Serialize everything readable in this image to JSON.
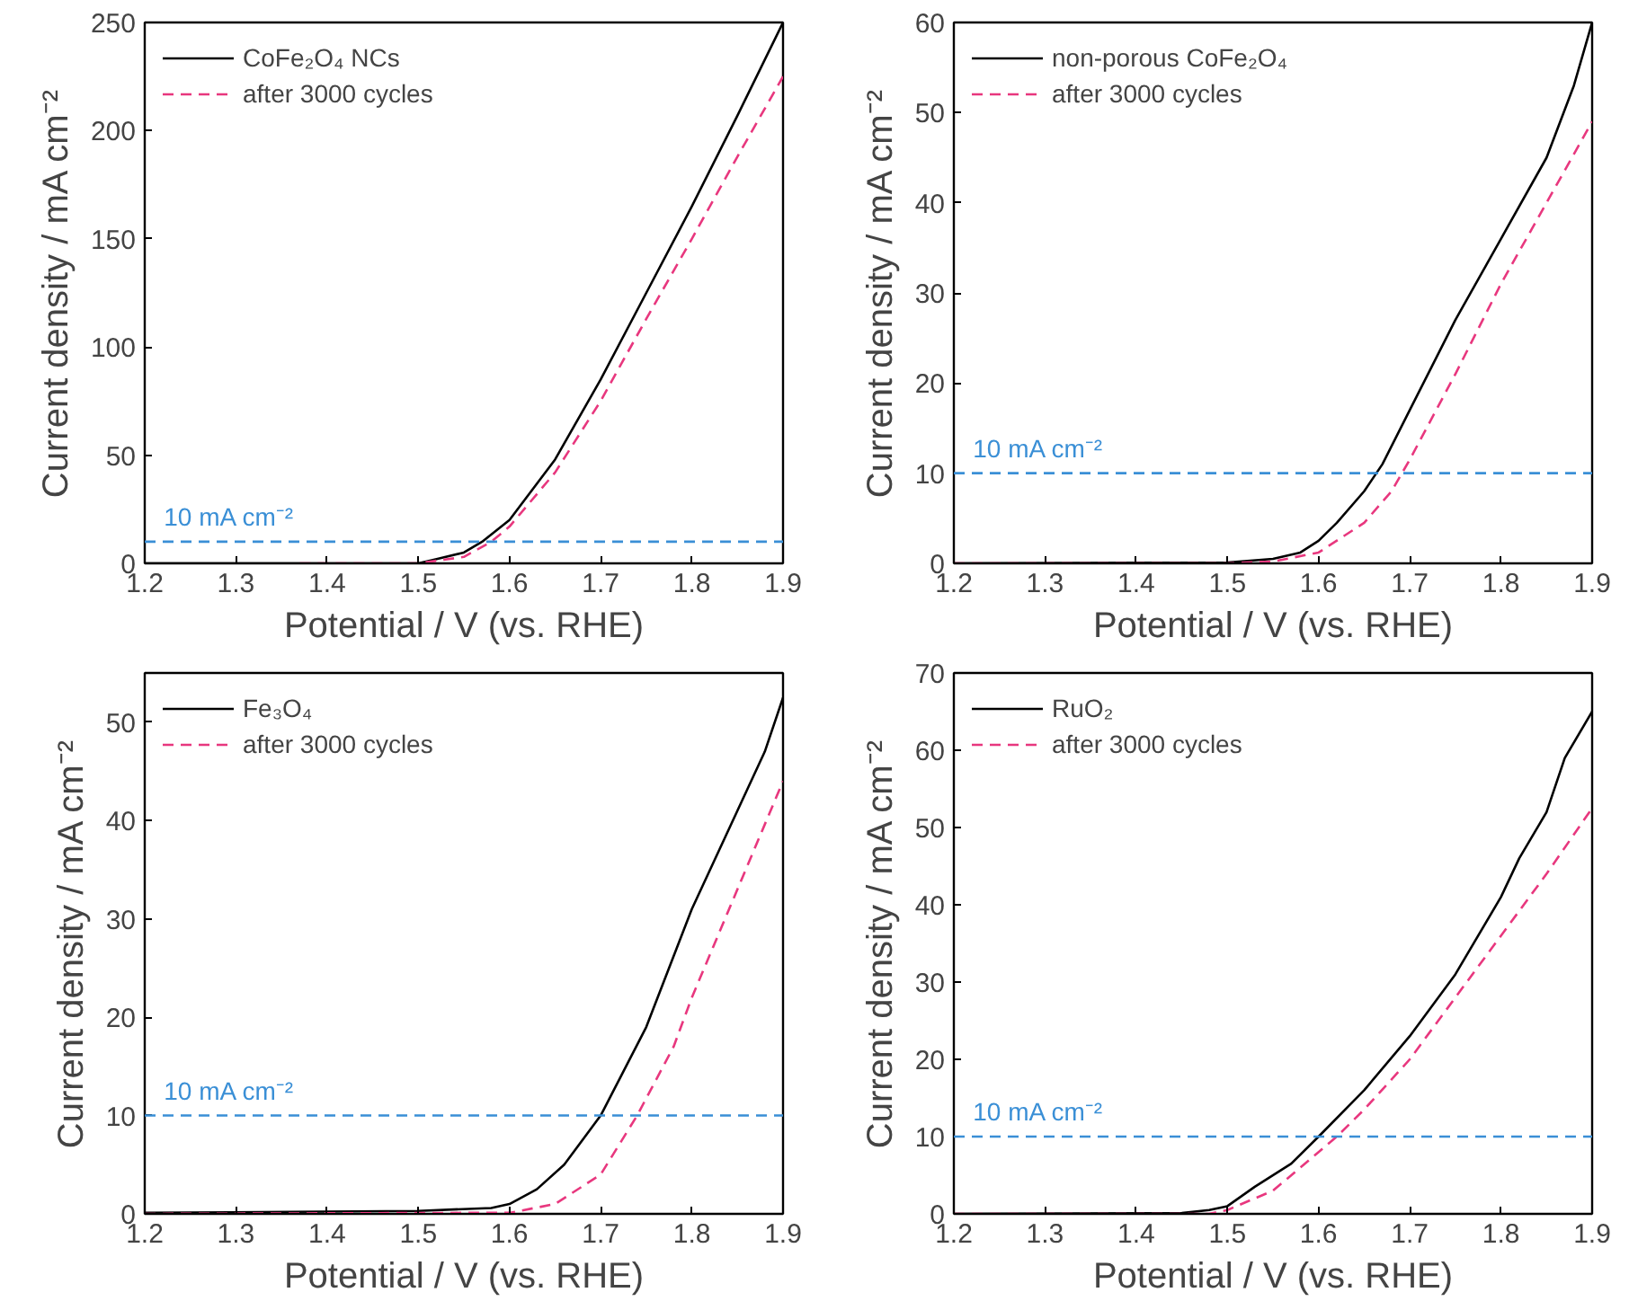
{
  "chart_data": [
    {
      "type": "line",
      "xlabel": "Potential / V (vs. RHE)",
      "ylabel": "Current density / mA cm⁻²",
      "xlim": [
        1.2,
        1.9
      ],
      "ylim": [
        0,
        250
      ],
      "xticks": [
        1.2,
        1.3,
        1.4,
        1.5,
        1.6,
        1.7,
        1.8,
        1.9
      ],
      "yticks": [
        0,
        50,
        100,
        150,
        200,
        250
      ],
      "legend": "top left",
      "grid": false,
      "ref_lines": [
        {
          "axis": "y",
          "value": 10,
          "label": "10 mA cm⁻²",
          "color": "#3a8fd6",
          "line_style": "dashed"
        }
      ],
      "series": [
        {
          "name": "CoFe₂O₄ NCs",
          "color": "#000000",
          "line_style": "solid",
          "x": [
            1.2,
            1.4,
            1.5,
            1.52,
            1.55,
            1.57,
            1.6,
            1.65,
            1.7,
            1.75,
            1.8,
            1.85,
            1.9
          ],
          "values": [
            0,
            0,
            0,
            2,
            5,
            10,
            20,
            48,
            85,
            125,
            165,
            207,
            250
          ]
        },
        {
          "name": "after 3000 cycles",
          "color": "#e8377e",
          "line_style": "dashed",
          "x": [
            1.37,
            1.5,
            1.55,
            1.58,
            1.6,
            1.65,
            1.7,
            1.75,
            1.8,
            1.85,
            1.9
          ],
          "values": [
            0,
            0,
            3,
            10,
            17,
            42,
            75,
            113,
            150,
            188,
            225
          ]
        }
      ]
    },
    {
      "type": "line",
      "xlabel": "Potential / V (vs. RHE)",
      "ylabel": "Current density / mA cm⁻²",
      "xlim": [
        1.2,
        1.9
      ],
      "ylim": [
        0,
        60
      ],
      "xticks": [
        1.2,
        1.3,
        1.4,
        1.5,
        1.6,
        1.7,
        1.8,
        1.9
      ],
      "yticks": [
        0,
        10,
        20,
        30,
        40,
        50,
        60
      ],
      "legend": "top left",
      "grid": false,
      "ref_lines": [
        {
          "axis": "y",
          "value": 10,
          "label": "10 mA cm⁻²",
          "color": "#3a8fd6",
          "line_style": "dashed"
        }
      ],
      "series": [
        {
          "name": "non-porous CoFe₂O₄",
          "color": "#000000",
          "line_style": "solid",
          "x": [
            1.2,
            1.5,
            1.55,
            1.58,
            1.6,
            1.62,
            1.65,
            1.67,
            1.7,
            1.75,
            1.8,
            1.85,
            1.88,
            1.9
          ],
          "values": [
            0,
            0.1,
            0.5,
            1.2,
            2.5,
            4.5,
            8,
            11,
            17,
            27,
            36,
            45,
            53,
            60
          ]
        },
        {
          "name": "after 3000 cycles",
          "color": "#e8377e",
          "line_style": "dashed",
          "x": [
            1.2,
            1.5,
            1.55,
            1.6,
            1.65,
            1.68,
            1.7,
            1.75,
            1.8,
            1.85,
            1.9
          ],
          "values": [
            0,
            0,
            0.2,
            1.2,
            4.5,
            8,
            11.5,
            21,
            31,
            40,
            49
          ]
        }
      ]
    },
    {
      "type": "line",
      "xlabel": "Potential / V (vs. RHE)",
      "ylabel": "Current density / mA cm⁻²",
      "xlim": [
        1.2,
        1.9
      ],
      "ylim": [
        0,
        55
      ],
      "xticks": [
        1.2,
        1.3,
        1.4,
        1.5,
        1.6,
        1.7,
        1.8,
        1.9
      ],
      "yticks": [
        0,
        10,
        20,
        30,
        40,
        50
      ],
      "legend": "top left",
      "grid": false,
      "ref_lines": [
        {
          "axis": "y",
          "value": 10,
          "label": "10 mA cm⁻²",
          "color": "#3a8fd6",
          "line_style": "dashed"
        }
      ],
      "series": [
        {
          "name": "Fe₃O₄",
          "color": "#000000",
          "line_style": "solid",
          "x": [
            1.2,
            1.5,
            1.58,
            1.6,
            1.63,
            1.66,
            1.7,
            1.75,
            1.8,
            1.85,
            1.88,
            1.9
          ],
          "values": [
            0.1,
            0.3,
            0.6,
            1,
            2.5,
            5,
            10,
            19,
            31,
            41,
            47,
            52.5
          ]
        },
        {
          "name": "after 3000 cycles",
          "color": "#e8377e",
          "line_style": "dashed",
          "x": [
            1.2,
            1.55,
            1.6,
            1.65,
            1.7,
            1.74,
            1.78,
            1.8,
            1.85,
            1.9
          ],
          "values": [
            0,
            0.1,
            0.1,
            1,
            4,
            10,
            17,
            22,
            33,
            44
          ]
        }
      ]
    },
    {
      "type": "line",
      "xlabel": "Potential / V (vs. RHE)",
      "ylabel": "Current density / mA cm⁻²",
      "xlim": [
        1.2,
        1.9
      ],
      "ylim": [
        0,
        70
      ],
      "xticks": [
        1.2,
        1.3,
        1.4,
        1.5,
        1.6,
        1.7,
        1.8,
        1.9
      ],
      "yticks": [
        0,
        10,
        20,
        30,
        40,
        50,
        60,
        70
      ],
      "legend": "top left",
      "grid": false,
      "ref_lines": [
        {
          "axis": "y",
          "value": 10,
          "label": "10 mA cm⁻²",
          "color": "#3a8fd6",
          "line_style": "dashed"
        }
      ],
      "series": [
        {
          "name": "RuO₂",
          "color": "#000000",
          "line_style": "solid",
          "x": [
            1.2,
            1.45,
            1.48,
            1.5,
            1.53,
            1.57,
            1.6,
            1.65,
            1.7,
            1.75,
            1.8,
            1.82,
            1.85,
            1.87,
            1.9
          ],
          "values": [
            0,
            0.1,
            0.5,
            1,
            3.5,
            6.5,
            10,
            16,
            23,
            31,
            41,
            46,
            52,
            59,
            65
          ]
        },
        {
          "name": "after 3000 cycles",
          "color": "#e8377e",
          "line_style": "dashed",
          "x": [
            1.2,
            1.48,
            1.5,
            1.55,
            1.6,
            1.62,
            1.65,
            1.7,
            1.75,
            1.8,
            1.85,
            1.9
          ],
          "values": [
            0,
            0,
            0.5,
            3,
            8,
            10,
            13.5,
            20,
            28,
            36,
            44,
            52.5
          ]
        }
      ]
    }
  ]
}
